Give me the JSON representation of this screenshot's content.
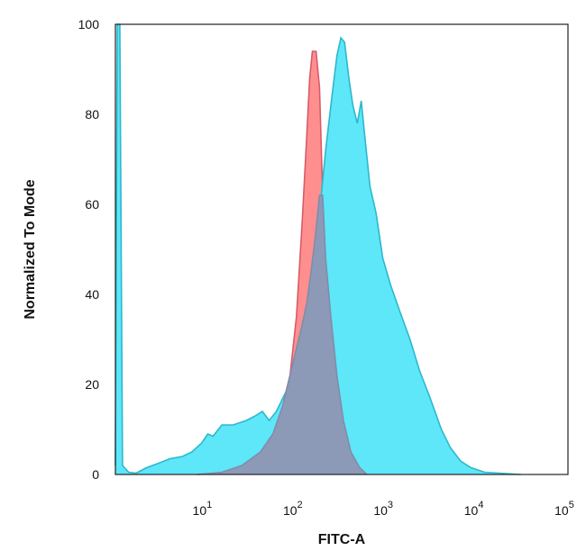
{
  "chart_data": {
    "type": "area",
    "title": "",
    "xlabel": "FITC-A",
    "ylabel": "Normalized To Mode",
    "x_scale": "log",
    "xlim": [
      1,
      100000
    ],
    "ylim": [
      0,
      100
    ],
    "y_ticks": [
      "0",
      "20",
      "40",
      "60",
      "80",
      "100"
    ],
    "x_ticks": [
      {
        "base": "10",
        "exp": "1",
        "value": 10
      },
      {
        "base": "10",
        "exp": "2",
        "value": 100
      },
      {
        "base": "10",
        "exp": "3",
        "value": 1000
      },
      {
        "base": "10",
        "exp": "4",
        "value": 10000
      },
      {
        "base": "10",
        "exp": "5",
        "value": 100000
      }
    ],
    "grid": false,
    "legend": "none",
    "series": [
      {
        "fill": "#ff8f8f",
        "stroke": "#d95a6a",
        "points": [
          [
            8,
            0
          ],
          [
            15,
            0.5
          ],
          [
            25,
            2
          ],
          [
            40,
            5
          ],
          [
            55,
            9
          ],
          [
            70,
            15
          ],
          [
            85,
            22
          ],
          [
            100,
            35
          ],
          [
            115,
            55
          ],
          [
            130,
            75
          ],
          [
            140,
            88
          ],
          [
            150,
            94
          ],
          [
            165,
            94
          ],
          [
            180,
            86
          ],
          [
            195,
            62
          ],
          [
            210,
            48
          ],
          [
            240,
            35
          ],
          [
            280,
            22
          ],
          [
            330,
            12
          ],
          [
            400,
            5
          ],
          [
            500,
            1.5
          ],
          [
            600,
            0
          ]
        ]
      },
      {
        "fill": "#5ee6f9",
        "stroke": "#2cb8cc",
        "points": [
          [
            1,
            2
          ],
          [
            1.05,
            100
          ],
          [
            1.12,
            100
          ],
          [
            1.2,
            2
          ],
          [
            1.4,
            0.5
          ],
          [
            1.7,
            0.3
          ],
          [
            2.2,
            1.5
          ],
          [
            3,
            2.5
          ],
          [
            4,
            3.5
          ],
          [
            5.5,
            4
          ],
          [
            7,
            5
          ],
          [
            9,
            7
          ],
          [
            10.5,
            9
          ],
          [
            12,
            8.5
          ],
          [
            15,
            11
          ],
          [
            20,
            11
          ],
          [
            28,
            12
          ],
          [
            35,
            13
          ],
          [
            42,
            14
          ],
          [
            50,
            12
          ],
          [
            60,
            14
          ],
          [
            75,
            18
          ],
          [
            95,
            23
          ],
          [
            120,
            30
          ],
          [
            150,
            42
          ],
          [
            180,
            58
          ],
          [
            210,
            72
          ],
          [
            250,
            85
          ],
          [
            280,
            93
          ],
          [
            310,
            97
          ],
          [
            340,
            96
          ],
          [
            380,
            88
          ],
          [
            420,
            82
          ],
          [
            470,
            78
          ],
          [
            520,
            83
          ],
          [
            570,
            75
          ],
          [
            650,
            64
          ],
          [
            760,
            58
          ],
          [
            900,
            48
          ],
          [
            1100,
            42
          ],
          [
            1400,
            36
          ],
          [
            1800,
            30
          ],
          [
            2300,
            23
          ],
          [
            3000,
            17
          ],
          [
            4000,
            10
          ],
          [
            5000,
            6
          ],
          [
            6500,
            3
          ],
          [
            8500,
            1.5
          ],
          [
            12000,
            0.5
          ],
          [
            30000,
            0
          ]
        ]
      },
      {
        "fill": "#8c9ab8",
        "stroke": "#7f8daa",
        "points": [
          [
            8,
            0
          ],
          [
            15,
            0.5
          ],
          [
            25,
            2
          ],
          [
            40,
            5
          ],
          [
            55,
            9
          ],
          [
            70,
            15
          ],
          [
            85,
            22
          ],
          [
            100,
            28
          ],
          [
            115,
            33
          ],
          [
            130,
            38
          ],
          [
            145,
            45
          ],
          [
            160,
            52
          ],
          [
            180,
            62
          ],
          [
            195,
            62
          ],
          [
            210,
            48
          ],
          [
            240,
            35
          ],
          [
            280,
            22
          ],
          [
            330,
            12
          ],
          [
            400,
            5
          ],
          [
            500,
            1.5
          ],
          [
            600,
            0
          ]
        ]
      }
    ]
  }
}
